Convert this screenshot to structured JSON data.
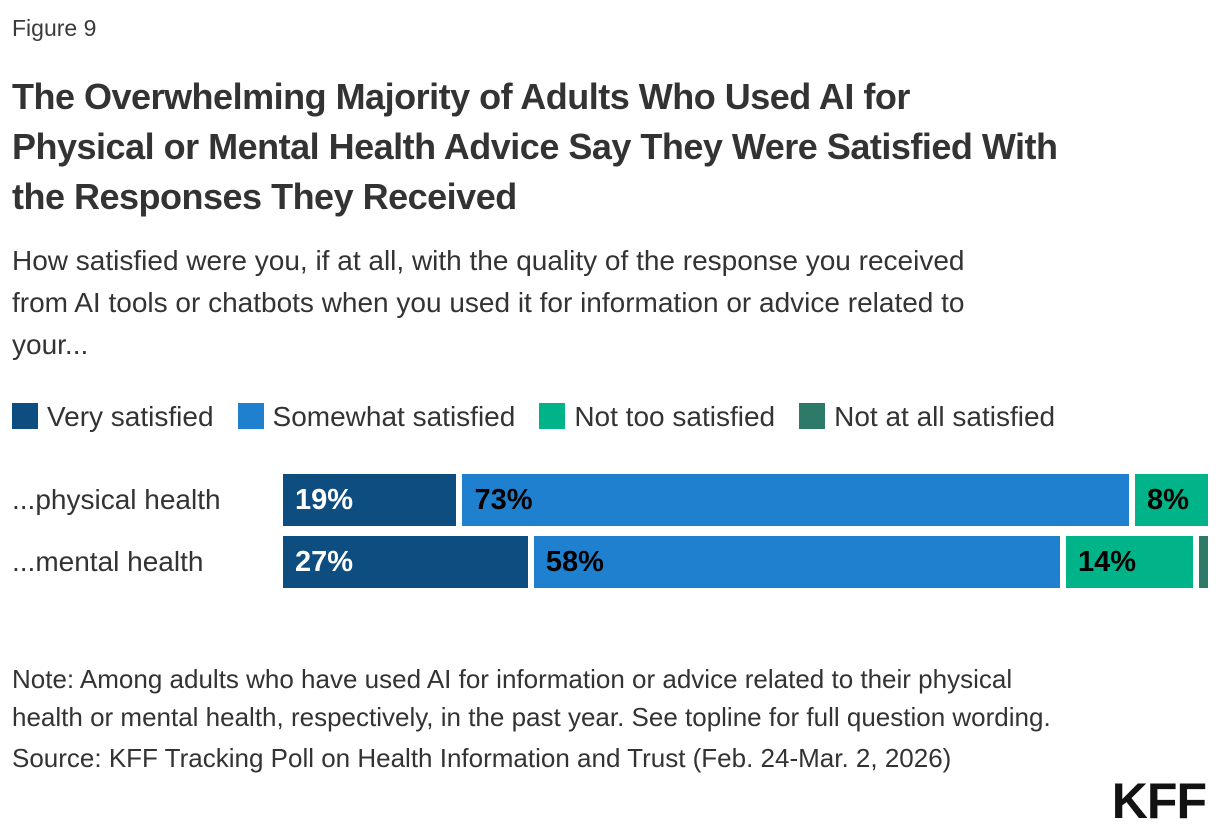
{
  "figure_label": "Figure 9",
  "title_lines": [
    "The Overwhelming Majority of Adults Who Used AI for",
    "Physical or Mental Health Advice Say They Were Satisfied With",
    "the Responses They Received"
  ],
  "subtitle_lines": [
    "How satisfied were you, if at all, with the quality of the response you received",
    "from AI tools or chatbots when you used it for information or advice related to",
    "your..."
  ],
  "legend": [
    {
      "label": "Very satisfied",
      "color": "#0e4d80"
    },
    {
      "label": "Somewhat satisfied",
      "color": "#2080d0"
    },
    {
      "label": "Not too satisfied",
      "color": "#00b388"
    },
    {
      "label": "Not at all satisfied",
      "color": "#2d7a68"
    }
  ],
  "chart_data": {
    "type": "bar",
    "orientation": "horizontal",
    "stacked": true,
    "title": "The Overwhelming Majority of Adults Who Used AI for Physical or Mental Health Advice Say They Were Satisfied With the Responses They Received",
    "question": "How satisfied were you, if at all, with the quality of the response you received from AI tools or chatbots when you used it for information or advice related to your...",
    "categories": [
      "...physical health",
      "...mental health"
    ],
    "series": [
      {
        "name": "Very satisfied",
        "color": "#0e4d80",
        "label_color": "#ffffff",
        "values": [
          19,
          27
        ]
      },
      {
        "name": "Somewhat satisfied",
        "color": "#2080d0",
        "label_color": "#000000",
        "values": [
          73,
          58
        ]
      },
      {
        "name": "Not too satisfied",
        "color": "#00b388",
        "label_color": "#000000",
        "values": [
          8,
          14
        ]
      },
      {
        "name": "Not at all satisfied",
        "color": "#2d7a68",
        "label_color": "#ffffff",
        "values": [
          0,
          1
        ]
      }
    ],
    "value_labels": [
      [
        "19%",
        "73%",
        "8%",
        ""
      ],
      [
        "27%",
        "58%",
        "14%",
        ""
      ]
    ],
    "xlim": [
      0,
      100
    ],
    "grid": false,
    "legend_position": "top"
  },
  "note_lines": [
    "Note: Among adults who have used AI for information or advice related to their physical",
    "health or mental health, respectively, in the past year. See topline for full question wording."
  ],
  "source": "Source: KFF Tracking Poll on Health Information and Trust (Feb. 24-Mar. 2, 2026)",
  "logo_text": "KFF",
  "colors": {
    "text": "#333333",
    "background": "#ffffff"
  }
}
